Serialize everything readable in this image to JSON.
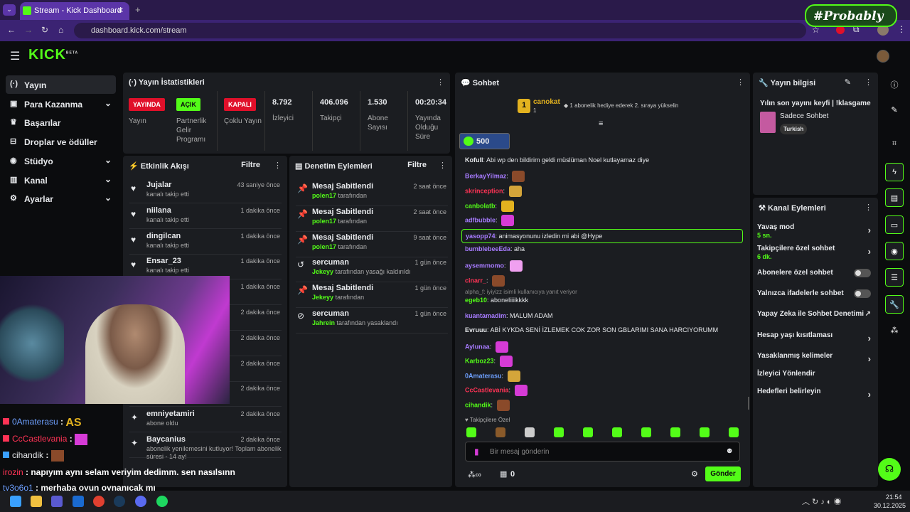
{
  "browser": {
    "tab_title": "Stream - Kick Dashboard",
    "url": "dashboard.kick.com/stream",
    "watermark": "#Probably"
  },
  "logo": "KICK",
  "logo_sup": "BETA",
  "sidebar": [
    {
      "label": "Yayın",
      "icon": "broadcast-icon",
      "active": true
    },
    {
      "label": "Para Kazanma",
      "icon": "money-icon",
      "chev": true
    },
    {
      "label": "Başarılar",
      "icon": "trophy-icon"
    },
    {
      "label": "Droplar ve ödüller",
      "icon": "gift-icon"
    },
    {
      "label": "Stüdyo",
      "icon": "studio-icon",
      "chev": true
    },
    {
      "label": "Kanal",
      "icon": "channel-icon",
      "chev": true
    },
    {
      "label": "Ayarlar",
      "icon": "gear-icon",
      "chev": true
    }
  ],
  "stats": {
    "title": "Yayın İstatistikleri",
    "b1": "YAYINDA",
    "b1l": "Yayın",
    "b2": "AÇIK",
    "b2l": "Partnerlik Gelir Programı",
    "b3": "KAPALI",
    "b3l": "Çoklu Yayın",
    "viewers": "8.792",
    "viewers_l": "İzleyici",
    "followers": "406.096",
    "followers_l": "Takipçi",
    "subs": "1.530",
    "subs_l": "Abone Sayısı",
    "uptime": "00:20:34",
    "uptime_l": "Yayında Olduğu Süre"
  },
  "activity": {
    "title": "Etkinlik Akışı",
    "filter": "Filtre",
    "items": [
      {
        "name": "Jujalar",
        "sub": "kanalı takip etti",
        "time": "43 saniye önce"
      },
      {
        "name": "niilana",
        "sub": "kanalı takip etti",
        "time": "1 dakika önce"
      },
      {
        "name": "dingilcan",
        "sub": "kanalı takip etti",
        "time": "1 dakika önce"
      },
      {
        "name": "Ensar_23",
        "sub": "kanalı takip etti",
        "time": "1 dakika önce"
      },
      {
        "name": "",
        "sub": "",
        "time": "1 dakika önce"
      },
      {
        "name": "",
        "sub": "",
        "time": "2 dakika önce"
      },
      {
        "name": "",
        "sub": "",
        "time": "2 dakika önce"
      },
      {
        "name": "",
        "sub": "",
        "time": "2 dakika önce"
      },
      {
        "name": "",
        "sub": "",
        "time": "2 dakika önce"
      },
      {
        "name": "emniyetamiri",
        "sub": "abone oldu",
        "time": "2 dakika önce"
      },
      {
        "name": "Baycanius",
        "sub": "abonelik yenilemesini kutluyor! Toplam abonelik süresi - 14 ay!",
        "time": "2 dakika önce"
      }
    ]
  },
  "moderation": {
    "title": "Denetim Eylemleri",
    "filter": "Filtre",
    "by": "tarafından",
    "items": [
      {
        "action": "Mesaj Sabitlendi",
        "user": "polen17",
        "suffix": "tarafından",
        "time": "2 saat önce"
      },
      {
        "action": "Mesaj Sabitlendi",
        "user": "polen17",
        "suffix": "tarafından",
        "time": "2 saat önce"
      },
      {
        "action": "Mesaj Sabitlendi",
        "user": "polen17",
        "suffix": "tarafından",
        "time": "9 saat önce"
      },
      {
        "action": "sercuman",
        "user": "Jekeyy",
        "suffix": "tarafından yasağı kaldırıldı",
        "time": "1 gün önce"
      },
      {
        "action": "Mesaj Sabitlendi",
        "user": "Jekeyy",
        "suffix": "tarafından",
        "time": "1 gün önce"
      },
      {
        "action": "sercuman",
        "user": "Jahrein",
        "suffix": "tarafından yasaklandı",
        "time": "1 gün önce"
      }
    ]
  },
  "chat": {
    "title": "Sohbet",
    "gifter": "canokat",
    "gift_rank": "1",
    "gifter_count": "1",
    "gift_msg": "1 abonelik hediye ederek 2. sıraya yükselin",
    "pin_count": "500",
    "messages": [
      {
        "user": "Kofull",
        "color": "#e7e9ec",
        "text": "Abi wp den bildirim geldi müslüman Noel kutlayamaz diye"
      },
      {
        "user": "BerkayYilmaz",
        "color": "#a77bff",
        "text": "",
        "emote": "#8a4a2a"
      },
      {
        "user": "skrinception",
        "color": "#ff3355",
        "text": "",
        "emote": "#d4a53a"
      },
      {
        "user": "canbolatb",
        "color": "#53fc18",
        "text": "",
        "emote": "#e3b21f"
      },
      {
        "user": "adfbubble",
        "color": "#a77bff",
        "text": "",
        "emote": "#d63bd6"
      },
      {
        "user": "yasopp74",
        "color": "#a77bff",
        "text": "animasyonunu izledin mi abi @Hype",
        "highlight": true
      },
      {
        "user": "bumblebeeEda",
        "color": "#a77bff",
        "text": "aha"
      },
      {
        "user": "aysemmomo",
        "color": "#a77bff",
        "text": "",
        "emote": "#f0a0f0"
      },
      {
        "user": "cinarr_",
        "color": "#ff3355",
        "text": "",
        "emote": "#8a4a2a"
      },
      {
        "user": "egeb10",
        "color": "#53fc18",
        "text": "aboneliiiikkkk",
        "reply": "alpha_f: iyiyizz isimli kullanıcıya yanıt veriyor"
      },
      {
        "user": "kuantamadim",
        "color": "#a77bff",
        "text": "MALUM ADAM"
      },
      {
        "user": "Evruuu",
        "color": "#e7e9ec",
        "text": "ABİ KYKDA SENİ İZLEMEK COK ZOR SON GBLARIMI SANA HARCIYORUMM"
      },
      {
        "user": "Aylunaa",
        "color": "#a77bff",
        "text": "",
        "emote": "#d63bd6"
      },
      {
        "user": "Karboz23",
        "color": "#53fc18",
        "text": "",
        "emote": "#d63bd6"
      },
      {
        "user": "0Amaterasu",
        "color": "#6ea0ff",
        "text": "",
        "emote": "#d4a53a"
      },
      {
        "user": "CcCastlevania",
        "color": "#ff3355",
        "text": "",
        "emote": "#d63bd6"
      },
      {
        "user": "cihandik",
        "color": "#53fc18",
        "text": "",
        "emote": "#8a4a2a"
      }
    ],
    "followers_only": "Takipçilere Özel",
    "placeholder": "Bir mesaj gönderin",
    "points": "0",
    "send": "Gönder"
  },
  "info": {
    "title": "Yayın bilgisi",
    "stream_title": "Yılın son yayını keyfi | !klasgame",
    "category": "Sadece Sohbet",
    "tag": "Turkish"
  },
  "actions": {
    "title": "Kanal Eylemleri",
    "items": [
      {
        "label": "Yavaş mod",
        "sub": "5 sn.",
        "type": "chev"
      },
      {
        "label": "Takipçilere özel sohbet",
        "sub": "6 dk.",
        "type": "chev"
      },
      {
        "label": "Abonelere özel sohbet",
        "sub": "",
        "type": "toggle"
      },
      {
        "label": "Yalnızca ifadelerle sohbet",
        "sub": "",
        "type": "toggle"
      },
      {
        "label": "Yapay Zeka ile Sohbet Denetimi",
        "sub": "",
        "type": "ext"
      },
      {
        "label": "Hesap yaşı kısıtlaması",
        "sub": "",
        "type": "chev"
      },
      {
        "label": "Yasaklanmış kelimeler",
        "sub": "",
        "type": "chev"
      },
      {
        "label": "İzleyici Yönlendir",
        "sub": "",
        "type": "none"
      },
      {
        "label": "Hedefleri belirleyin",
        "sub": "",
        "type": "chev"
      }
    ]
  },
  "overlay_chat": [
    {
      "user": "0Amaterasu",
      "color": "#6ea0ff",
      "text": " : ",
      "emote": "AS"
    },
    {
      "user": "CcCastlevania",
      "color": "#ff3355",
      "text": " : ",
      "emote": ""
    },
    {
      "user": "cihandik",
      "color": "#e7e9ec",
      "text": " : ",
      "emote": ""
    },
    {
      "user": "irozin",
      "color": "#ff3355",
      "text": " : napıyım aynı selam veriyim dedimm. sen nasılsınn"
    },
    {
      "user": "ty3o6o1",
      "color": "#6ea0ff",
      "text": " : merhaba oyun oynanıcak mı"
    }
  ],
  "taskbar": {
    "time": "21:54",
    "date": "30.12.2025"
  },
  "colors": {
    "accent": "#53fc18",
    "panel": "#1b1d21",
    "bg": "#0b0c0e",
    "live": "#e0102a"
  }
}
